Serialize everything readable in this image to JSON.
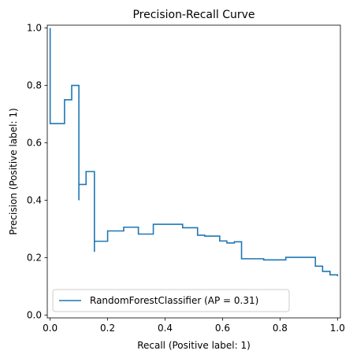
{
  "chart_data": {
    "type": "line",
    "drawstyle": "steps-post",
    "title": "Precision-Recall Curve",
    "xlabel": "Recall (Positive label: 1)",
    "ylabel": "Precision (Positive label: 1)",
    "xlim": [
      -0.01,
      1.01
    ],
    "ylim": [
      -0.01,
      1.01
    ],
    "x_ticks": [
      0.0,
      0.2,
      0.4,
      0.6,
      0.8,
      1.0
    ],
    "y_ticks": [
      0.0,
      0.2,
      0.4,
      0.6,
      0.8,
      1.0
    ],
    "x_tick_labels": [
      "0.0",
      "0.2",
      "0.4",
      "0.6",
      "0.8",
      "1.0"
    ],
    "y_tick_labels": [
      "0.0",
      "0.2",
      "0.4",
      "0.6",
      "0.8",
      "1.0"
    ],
    "grid": false,
    "legend": {
      "position": "lower-left",
      "entries": [
        "RandomForestClassifier (AP = 0.31)"
      ]
    },
    "series": [
      {
        "name": "RandomForestClassifier (AP = 0.31)",
        "color": "#1f77b4",
        "points": [
          [
            0.0,
            1.0
          ],
          [
            0.0,
            0.667
          ],
          [
            0.05,
            0.667
          ],
          [
            0.05,
            0.75
          ],
          [
            0.075,
            0.75
          ],
          [
            0.075,
            0.8
          ],
          [
            0.1,
            0.8
          ],
          [
            0.1,
            0.4
          ],
          [
            0.1,
            0.455
          ],
          [
            0.125,
            0.455
          ],
          [
            0.125,
            0.5
          ],
          [
            0.154,
            0.5
          ],
          [
            0.154,
            0.22
          ],
          [
            0.154,
            0.257
          ],
          [
            0.2,
            0.257
          ],
          [
            0.2,
            0.293
          ],
          [
            0.256,
            0.293
          ],
          [
            0.256,
            0.306
          ],
          [
            0.307,
            0.306
          ],
          [
            0.307,
            0.282
          ],
          [
            0.359,
            0.282
          ],
          [
            0.359,
            0.316
          ],
          [
            0.461,
            0.316
          ],
          [
            0.461,
            0.304
          ],
          [
            0.513,
            0.304
          ],
          [
            0.513,
            0.278
          ],
          [
            0.538,
            0.278
          ],
          [
            0.538,
            0.275
          ],
          [
            0.59,
            0.275
          ],
          [
            0.59,
            0.258
          ],
          [
            0.615,
            0.258
          ],
          [
            0.615,
            0.251
          ],
          [
            0.641,
            0.251
          ],
          [
            0.641,
            0.255
          ],
          [
            0.666,
            0.255
          ],
          [
            0.666,
            0.196
          ],
          [
            0.743,
            0.196
          ],
          [
            0.743,
            0.192
          ],
          [
            0.82,
            0.192
          ],
          [
            0.82,
            0.201
          ],
          [
            0.923,
            0.201
          ],
          [
            0.923,
            0.17
          ],
          [
            0.948,
            0.17
          ],
          [
            0.948,
            0.152
          ],
          [
            0.974,
            0.152
          ],
          [
            0.974,
            0.14
          ],
          [
            1.0,
            0.14
          ],
          [
            1.0,
            0.135
          ]
        ]
      }
    ]
  }
}
